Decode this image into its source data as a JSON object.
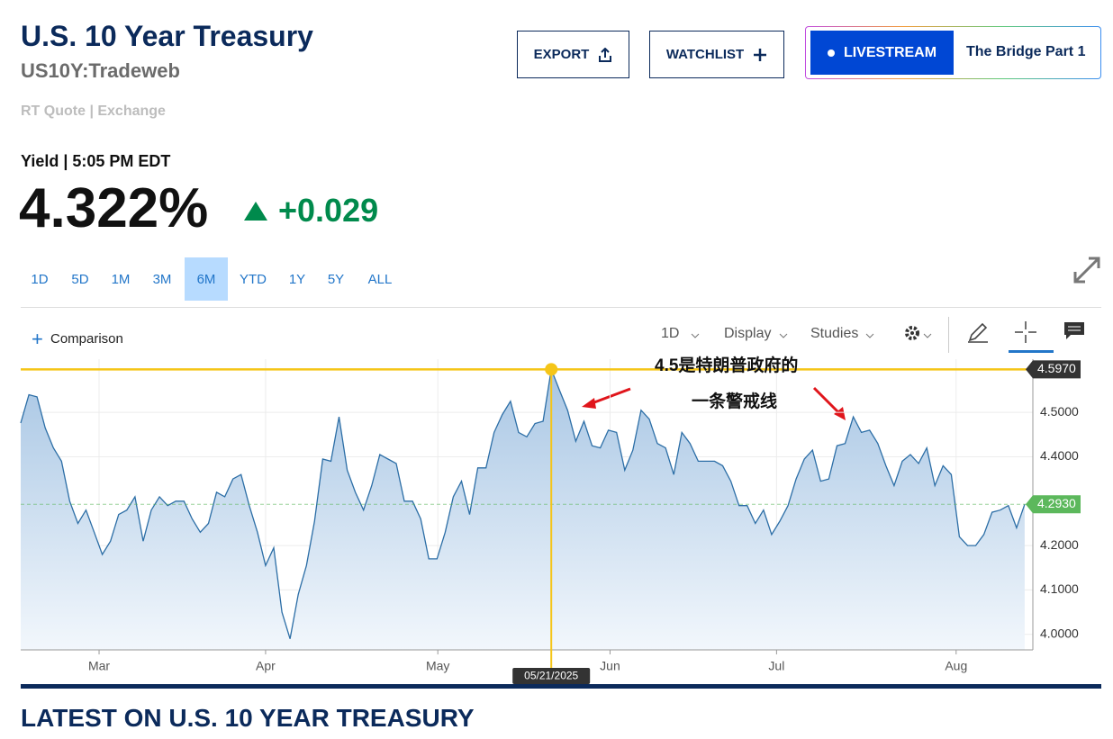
{
  "header": {
    "title": "U.S. 10 Year Treasury",
    "symbol": "US10Y:Tradeweb",
    "quote_source": "RT Quote | Exchange",
    "yield_label": "Yield | 5:05 PM EDT",
    "price": "4.322%",
    "change": "+0.029"
  },
  "buttons": {
    "export": "EXPORT",
    "watchlist": "WATCHLIST",
    "livestream": "LIVESTREAM",
    "show": "The Bridge Part 1"
  },
  "ranges": [
    "1D",
    "5D",
    "1M",
    "3M",
    "6M",
    "YTD",
    "1Y",
    "5Y",
    "ALL"
  ],
  "active_range": "6M",
  "toolbar": {
    "comparison": "Comparison",
    "interval": "1D",
    "display": "Display",
    "studies": "Studies"
  },
  "chart_data": {
    "type": "line",
    "color": "#2c6ea6",
    "values": [
      4.476,
      4.54,
      4.535,
      4.465,
      4.42,
      4.39,
      4.3,
      4.25,
      4.28,
      4.23,
      4.18,
      4.21,
      4.27,
      4.28,
      4.31,
      4.21,
      4.28,
      4.31,
      4.29,
      4.3,
      4.3,
      4.26,
      4.23,
      4.25,
      4.32,
      4.31,
      4.35,
      4.36,
      4.29,
      4.23,
      4.155,
      4.195,
      4.05,
      3.99,
      4.09,
      4.155,
      4.255,
      4.395,
      4.39,
      4.49,
      4.37,
      4.32,
      4.28,
      4.335,
      4.405,
      4.395,
      4.385,
      4.3,
      4.3,
      4.26,
      4.17,
      4.17,
      4.23,
      4.31,
      4.345,
      4.27,
      4.375,
      4.375,
      4.455,
      4.495,
      4.525,
      4.455,
      4.445,
      4.475,
      4.48,
      4.597,
      4.55,
      4.505,
      4.435,
      4.48,
      4.425,
      4.42,
      4.46,
      4.455,
      4.37,
      4.415,
      4.505,
      4.485,
      4.43,
      4.42,
      4.36,
      4.455,
      4.43,
      4.39,
      4.39,
      4.39,
      4.38,
      4.345,
      4.29,
      4.29,
      4.25,
      4.28,
      4.225,
      4.255,
      4.29,
      4.35,
      4.395,
      4.415,
      4.345,
      4.35,
      4.425,
      4.43,
      4.49,
      4.455,
      4.46,
      4.43,
      4.38,
      4.335,
      4.39,
      4.405,
      4.385,
      4.42,
      4.335,
      4.38,
      4.36,
      4.22,
      4.2,
      4.2,
      4.225,
      4.275,
      4.28,
      4.29,
      4.24,
      4.293
    ],
    "xlim": [
      0,
      124
    ],
    "xticks": [
      {
        "value": 9.6,
        "label": "Mar"
      },
      {
        "value": 30,
        "label": "Apr"
      },
      {
        "value": 51.1,
        "label": "May"
      },
      {
        "value": 72.2,
        "label": "Jun"
      },
      {
        "value": 92.6,
        "label": "Jul"
      },
      {
        "value": 114.6,
        "label": "Aug"
      }
    ],
    "ylim": [
      3.965,
      4.62
    ],
    "yticks": [
      {
        "value": 4,
        "label": "4.0000"
      },
      {
        "value": 4.1,
        "label": "4.1000"
      },
      {
        "value": 4.2,
        "label": "4.2000"
      },
      {
        "value": 4.4,
        "label": "4.4000"
      },
      {
        "value": 4.5,
        "label": "4.5000"
      }
    ],
    "grid": true,
    "reference_lines": [
      {
        "value": 4.597,
        "label": "4.5970",
        "color": "#f5c518"
      }
    ],
    "crosshair": {
      "value": 65,
      "label": "05/21/2025"
    },
    "last_value_label": "4.2930",
    "last_value_color": "#5cb85c",
    "annotation": [
      "4.5是特朗普政府的",
      "一条警戒线"
    ]
  },
  "section_title": "LATEST ON U.S. 10 YEAR TREASURY"
}
